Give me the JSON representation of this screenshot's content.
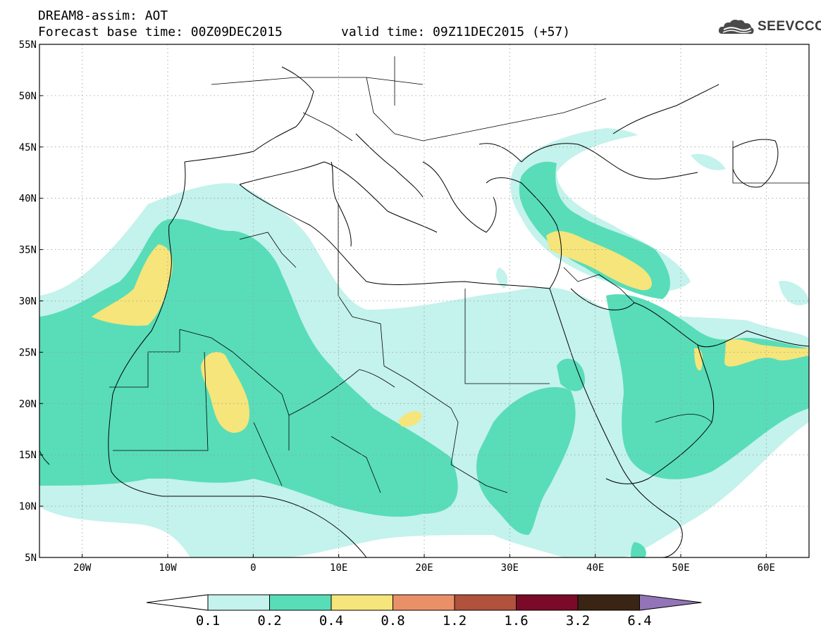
{
  "header": {
    "title": "DREAM8-assim: AOT",
    "base_time": "Forecast base time: 00Z09DEC2015",
    "valid_time": "valid time: 09Z11DEC2015 (+57)"
  },
  "logo": {
    "text": "SEEVCCC",
    "icon": "cloud-icon"
  },
  "map": {
    "lat_labels": [
      "55N",
      "50N",
      "45N",
      "40N",
      "35N",
      "30N",
      "25N",
      "20N",
      "15N",
      "10N",
      "5N"
    ],
    "lon_labels": [
      "20W",
      "10W",
      "0",
      "10E",
      "20E",
      "30E",
      "40E",
      "50E",
      "60E"
    ],
    "lon_range": [
      -25,
      65
    ],
    "lat_range": [
      5,
      55
    ],
    "grid": true
  },
  "legend": {
    "labels": [
      "0.1",
      "0.2",
      "0.4",
      "0.8",
      "1.2",
      "1.6",
      "3.2",
      "6.4"
    ],
    "colors": [
      "#ffffff",
      "#c4f2ec",
      "#58ddb8",
      "#f5e57a",
      "#ea9068",
      "#b0523c",
      "#7a0a28",
      "#3a2414",
      "#9474b8"
    ]
  }
}
